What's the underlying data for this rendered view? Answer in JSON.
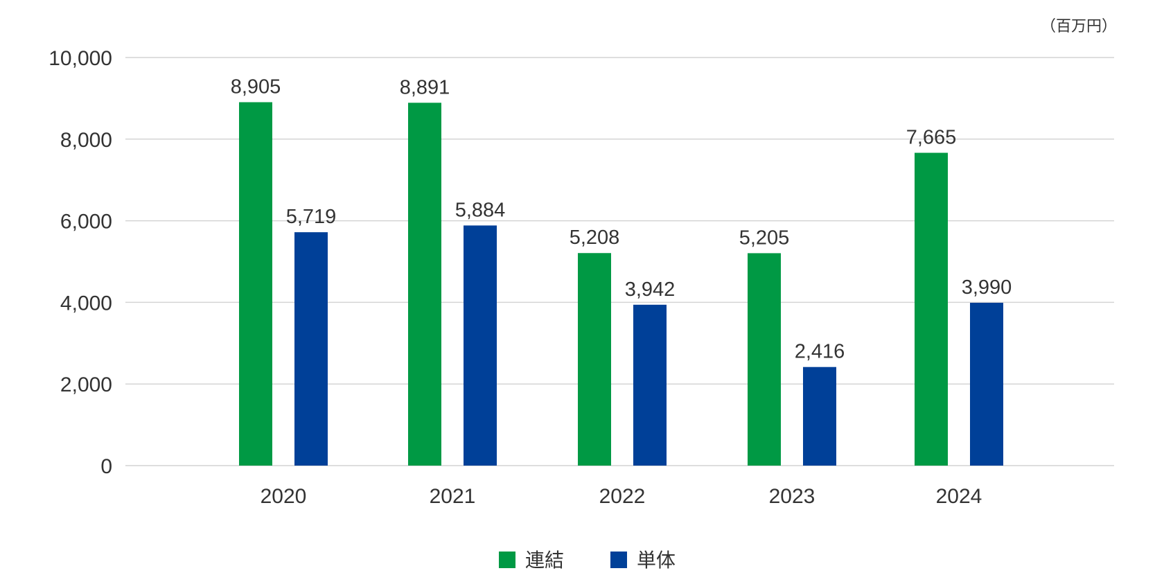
{
  "chart_data": {
    "type": "bar",
    "unit": "（百万円）",
    "categories": [
      "2020",
      "2021",
      "2022",
      "2023",
      "2024"
    ],
    "series": [
      {
        "name": "連結",
        "color": "#009944",
        "values": [
          8905,
          8891,
          5208,
          5205,
          7665
        ],
        "labels": [
          "8,905",
          "8,891",
          "5,208",
          "5,205",
          "7,665"
        ]
      },
      {
        "name": "単体",
        "color": "#004098",
        "values": [
          5719,
          5884,
          3942,
          2416,
          3990
        ],
        "labels": [
          "5,719",
          "5,884",
          "3,942",
          "2,416",
          "3,990"
        ]
      }
    ],
    "ylim": [
      0,
      10000
    ],
    "yticks": [
      0,
      2000,
      4000,
      6000,
      8000,
      10000
    ],
    "ytick_labels": [
      "0",
      "2,000",
      "4,000",
      "6,000",
      "8,000",
      "10,000"
    ],
    "grid": true,
    "legend_position": "bottom-center"
  }
}
